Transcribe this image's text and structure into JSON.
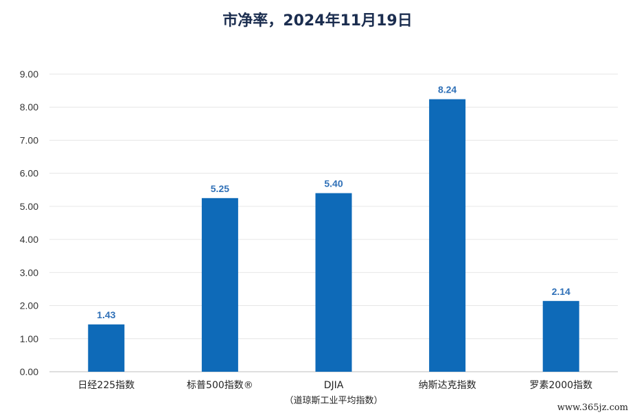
{
  "chart_data": {
    "type": "bar",
    "title": "市净率，2024年11月19日",
    "categories": [
      "日经225指数",
      "标普500指数®",
      "DJIA",
      "纳斯达克指数",
      "罗素2000指数"
    ],
    "category_sublabels": [
      "",
      "",
      "（道琼斯工业平均指数）",
      "",
      ""
    ],
    "values": [
      1.43,
      5.25,
      5.4,
      8.24,
      2.14
    ],
    "data_labels": [
      "1.43",
      "5.25",
      "5.40",
      "8.24",
      "2.14"
    ],
    "ylim": [
      0,
      9
    ],
    "yticks": [
      "0.00",
      "1.00",
      "2.00",
      "3.00",
      "4.00",
      "5.00",
      "6.00",
      "7.00",
      "8.00",
      "9.00"
    ],
    "xlabel": "",
    "ylabel": "",
    "grid": true,
    "bar_color": "#0e6ab8",
    "label_color": "#2f70b7"
  },
  "watermark": "www.365jz.com"
}
